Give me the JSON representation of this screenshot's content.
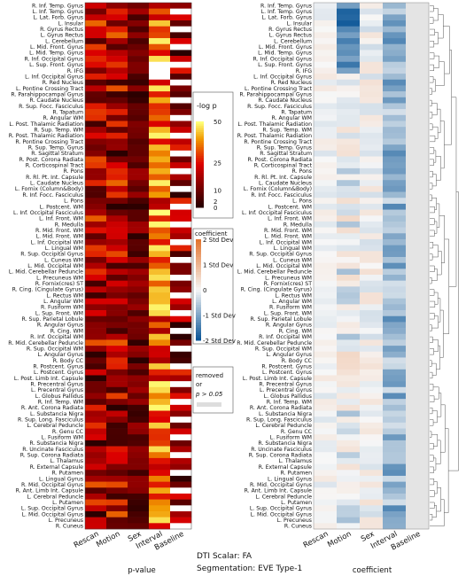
{
  "chart_data": {
    "type": "heatmap",
    "row_labels": [
      "R. Inf. Temp. Gyrus",
      "L. Inf. Temp. Gyrus",
      "L. Lat. Forb. Gyrus",
      "L. Insular",
      "R. Gyrus Rectus",
      "L. Gyrus Rectus",
      "L. Cerebellum",
      "L. Mid. Front. Gyrus",
      "L. Mid. Temp. Gyrus",
      "R. Inf. Occipital Gyrus",
      "L. Sup. Front. Gyrus",
      "R. IFG",
      "L. Inf. Occipital Gyrus",
      "R. Red Nucleus",
      "L. Pontine Crossing Tract",
      "R. Parahippocampal Gyrus",
      "R. Caudate Nucleus",
      "R. Sup. Focc. Fasciculus",
      "R. Tapatum",
      "R. Angular WM",
      "L. Post. Thalamic Radiation",
      "R. Sup. Temp. WM",
      "R. Post. Thalamic Radiation",
      "R. Pontine Crossing Tract",
      "R. Sup. Temp. Gyrus",
      "R. Sagittal Stratum",
      "R. Post. Corona Radiata",
      "R. Corticospinal Tract",
      "R. Pons",
      "R. Rl. Pt. Int. Capsule",
      "L. Caudate Nucleus",
      "L. Fornix (Column&Body)",
      "R. Inf. Focc. Fasciculus",
      "L. Pons",
      "L. Postcent. WM",
      "L. Inf. Occipital Fasciculus",
      "L. Inf. Front. WM",
      "R. Medulla",
      "R. Mid. Front. WM",
      "L. Mid. Front. WM",
      "L. Inf. Occipital WM",
      "L. Lingual WM",
      "R. Sup. Occipital Gyrus",
      "L. Cuneus WM",
      "L. Mid. Occipital WM",
      "L. Mid. Cerebellar Peduncle",
      "L. Precuneus WM",
      "R. Fornix(cres) ST",
      "R. Cing. (Cingulate Gyrus)",
      "L. Rectus WM",
      "L. Angular WM",
      "R. Fusiform WM",
      "L. Sup. Front. WM",
      "R. Sup. Parietal Lobule",
      "R. Angular Gyrus",
      "R. Cing. WM",
      "R. Inf. Occipital WM",
      "R. Mid. Cerebellar Peduncle",
      "R. Sup. Occipital WM",
      "L. Angular Gyrus",
      "R. Body CC",
      "R. Postcent. Gyrus",
      "L. Postcent. Gyrus",
      "L. Post. Limb Int. Capsule",
      "R. Precentral Gyrus",
      "L. Precentral Gyrus",
      "L. Globus Pallidus",
      "R. Inf. Temp. WM",
      "R. Ant. Corona Radiata",
      "L. Substancia Nigra",
      "R. Sup. Long. Fasciculus",
      "L. Cerebral Peduncle",
      "R. Genu CC",
      "L. Fusiform WM",
      "R. Substancia Nigra",
      "R. Uncinate Fasciculus",
      "R. Sup. Corona Radiata",
      "L. Thalamus",
      "R. External Capsule",
      "R. Putamen",
      "L. Lingual Gyrus",
      "R. Mid. Occipital Gyrus",
      "R. Ant. Limb Int. Capsule",
      "L. Cerebral Peduncle",
      "L. Putamen",
      "L. Sup. Occipital Gyrus",
      "L. Mid. Occipital Gyrus",
      "L. Precuneus",
      "R. Cuneus"
    ],
    "columns": [
      "Rescan",
      "Motion",
      "Sex",
      "Interval",
      "Baseline"
    ],
    "left_panel": {
      "xlabel": "p-value",
      "legend_title": "-log p",
      "legend_ticks": [
        "50",
        "25",
        "10",
        "2",
        "0"
      ]
    },
    "right_panel": {
      "xlabel": "coefficient",
      "legend_title": "coefficient",
      "legend_ticks": [
        "2 Std Dev",
        "1 Std Dev",
        "0",
        "-1 Std Dev",
        "-2 Std Dev"
      ]
    },
    "removed_legend": {
      "line1": "removed",
      "line2": "or",
      "line3": "p > 0.05"
    },
    "caption": {
      "line1": "DTI Scalar: FA",
      "line2": "Segmentation: EVE Type-1"
    },
    "colors": {
      "hot_low": "#000000",
      "hot_mid": "#cc0000",
      "hot_high": "#ffff66",
      "coef_neg": "#08519c",
      "coef_zero": "#f7f7f7",
      "coef_pos": "#e6550d",
      "removed": "#dddddd"
    }
  }
}
